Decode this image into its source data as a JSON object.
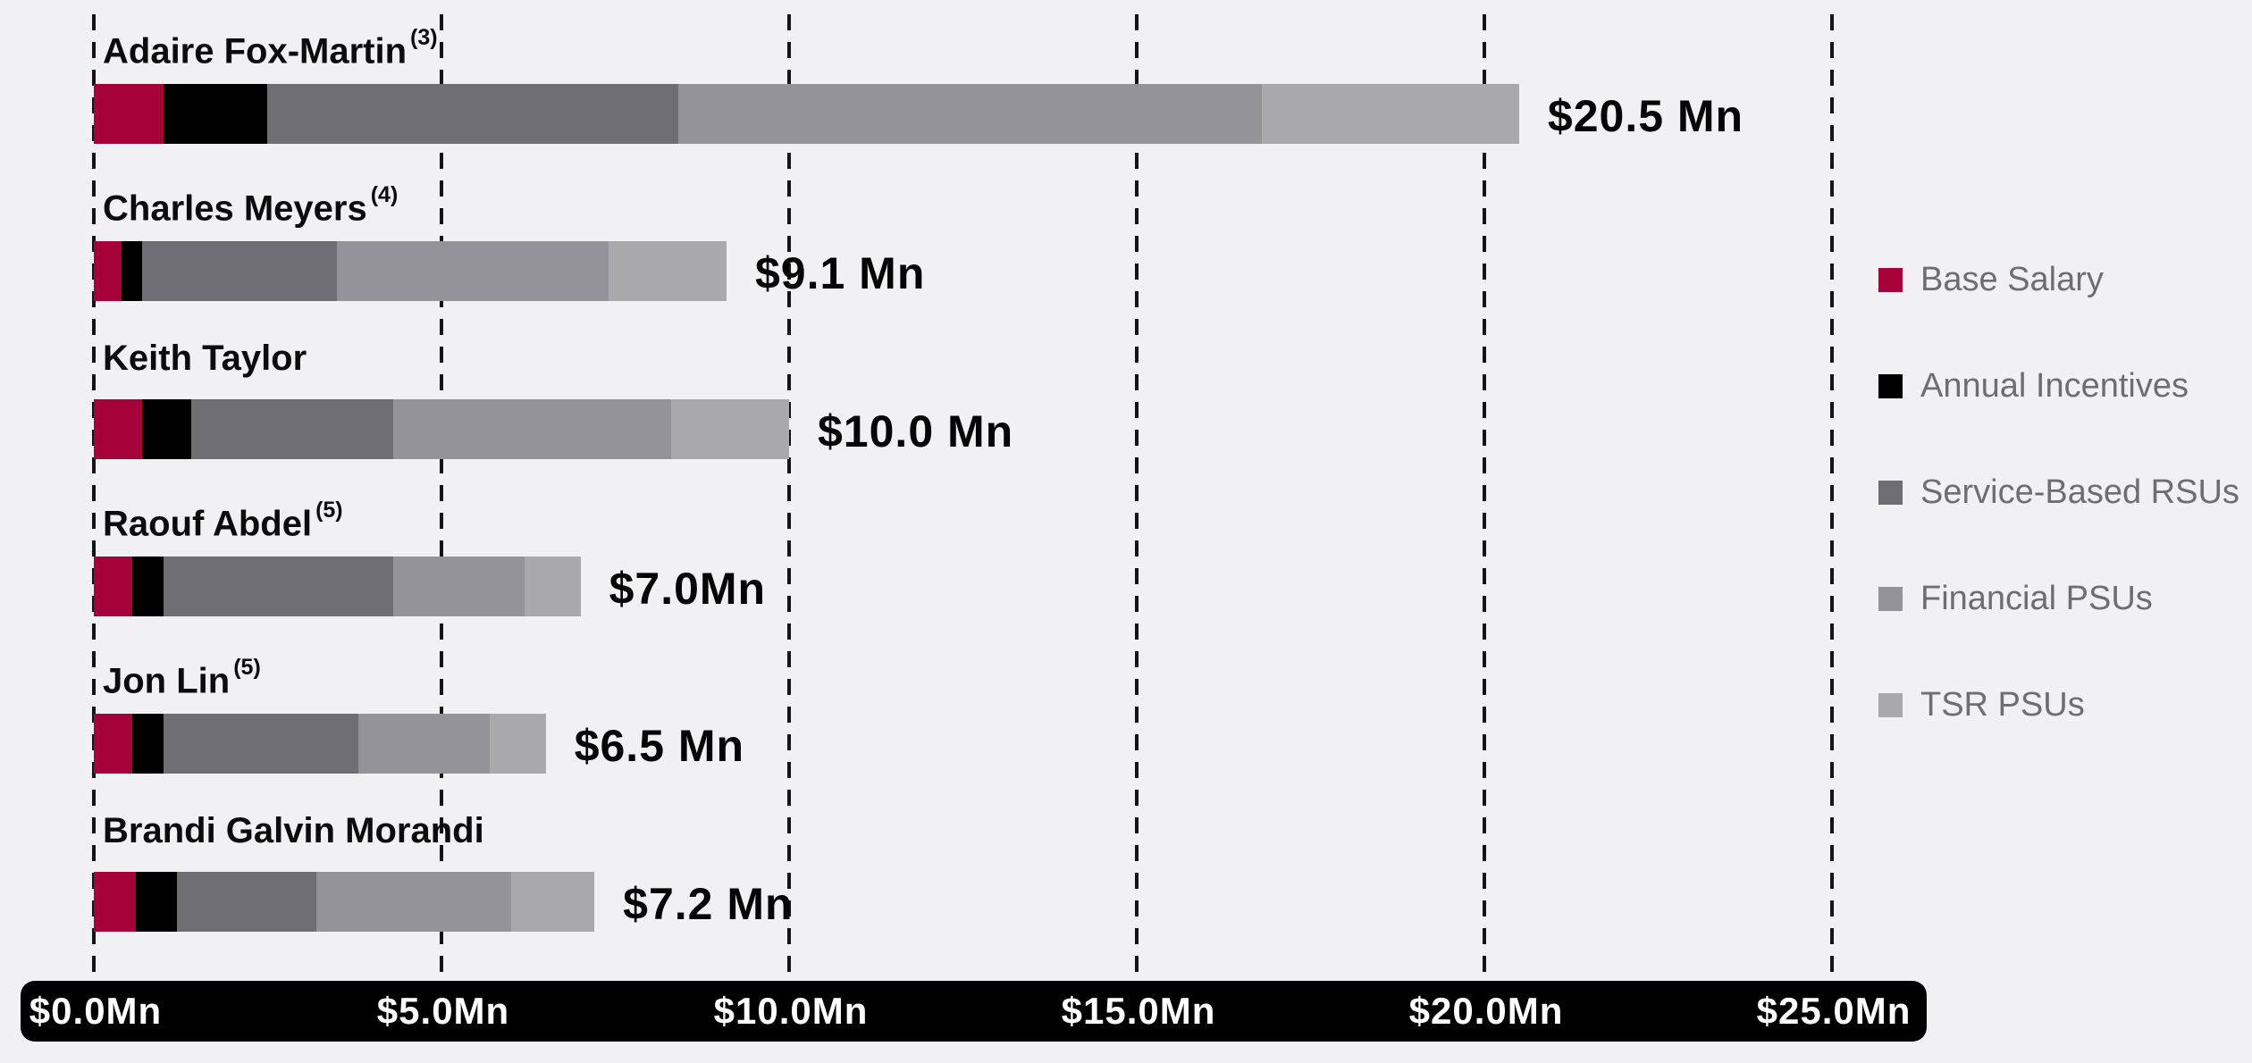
{
  "chart_data": {
    "type": "bar",
    "orientation": "horizontal",
    "stacked": true,
    "title": "",
    "xlabel": "",
    "ylabel": "",
    "unit": "Mn USD",
    "xlim": [
      0,
      25
    ],
    "grid": "dashed-vertical",
    "legend_position": "right",
    "background_color": "#F1F1F3",
    "axis_bar_color": "#000000",
    "axis_text_color": "#FFFFFF",
    "gridline_color": "#141414",
    "series": [
      {
        "label": "Base Salary",
        "color": "#A40238"
      },
      {
        "label": "Annual Incentives",
        "color": "#000000"
      },
      {
        "label": "Service-Based RSUs",
        "color": "#6E6E72"
      },
      {
        "label": "Financial PSUs",
        "color": "#949498"
      },
      {
        "label": "TSR PSUs",
        "color": "#A9A9AC"
      }
    ],
    "rows": [
      {
        "name": "Adaire Fox-Martin",
        "footnote": "(3)",
        "total": 20.5,
        "total_label": "$20.5 Mn",
        "values": [
          1.0,
          1.5,
          5.9,
          8.4,
          3.7
        ]
      },
      {
        "name": "Charles Meyers",
        "footnote": "(4)",
        "total": 9.1,
        "total_label": "$9.1 Mn",
        "values": [
          0.4,
          0.3,
          2.8,
          3.9,
          1.7
        ]
      },
      {
        "name": "Keith Taylor",
        "footnote": "",
        "total": 10.0,
        "total_label": "$10.0 Mn",
        "values": [
          0.7,
          0.7,
          2.9,
          4.0,
          1.7
        ]
      },
      {
        "name": "Raouf Abdel",
        "footnote": "(5)",
        "total": 7.0,
        "total_label": "$7.0Mn",
        "values": [
          0.55,
          0.45,
          3.3,
          1.9,
          0.8
        ]
      },
      {
        "name": "Jon Lin",
        "footnote": "(5)",
        "total": 6.5,
        "total_label": "$6.5 Mn",
        "values": [
          0.55,
          0.45,
          2.8,
          1.9,
          0.8
        ]
      },
      {
        "name": "Brandi Galvin Morandi",
        "footnote": "",
        "total": 7.2,
        "total_label": "$7.2 Mn",
        "values": [
          0.6,
          0.6,
          2.0,
          2.8,
          1.2
        ]
      }
    ],
    "x_axis": {
      "values": [
        0,
        5,
        10,
        15,
        20,
        25
      ],
      "tick_labels": [
        "$0.0Mn",
        "$5.0Mn",
        "$10.0Mn",
        "$15.0Mn",
        "$20.0Mn",
        "$25.0Mn"
      ]
    }
  }
}
